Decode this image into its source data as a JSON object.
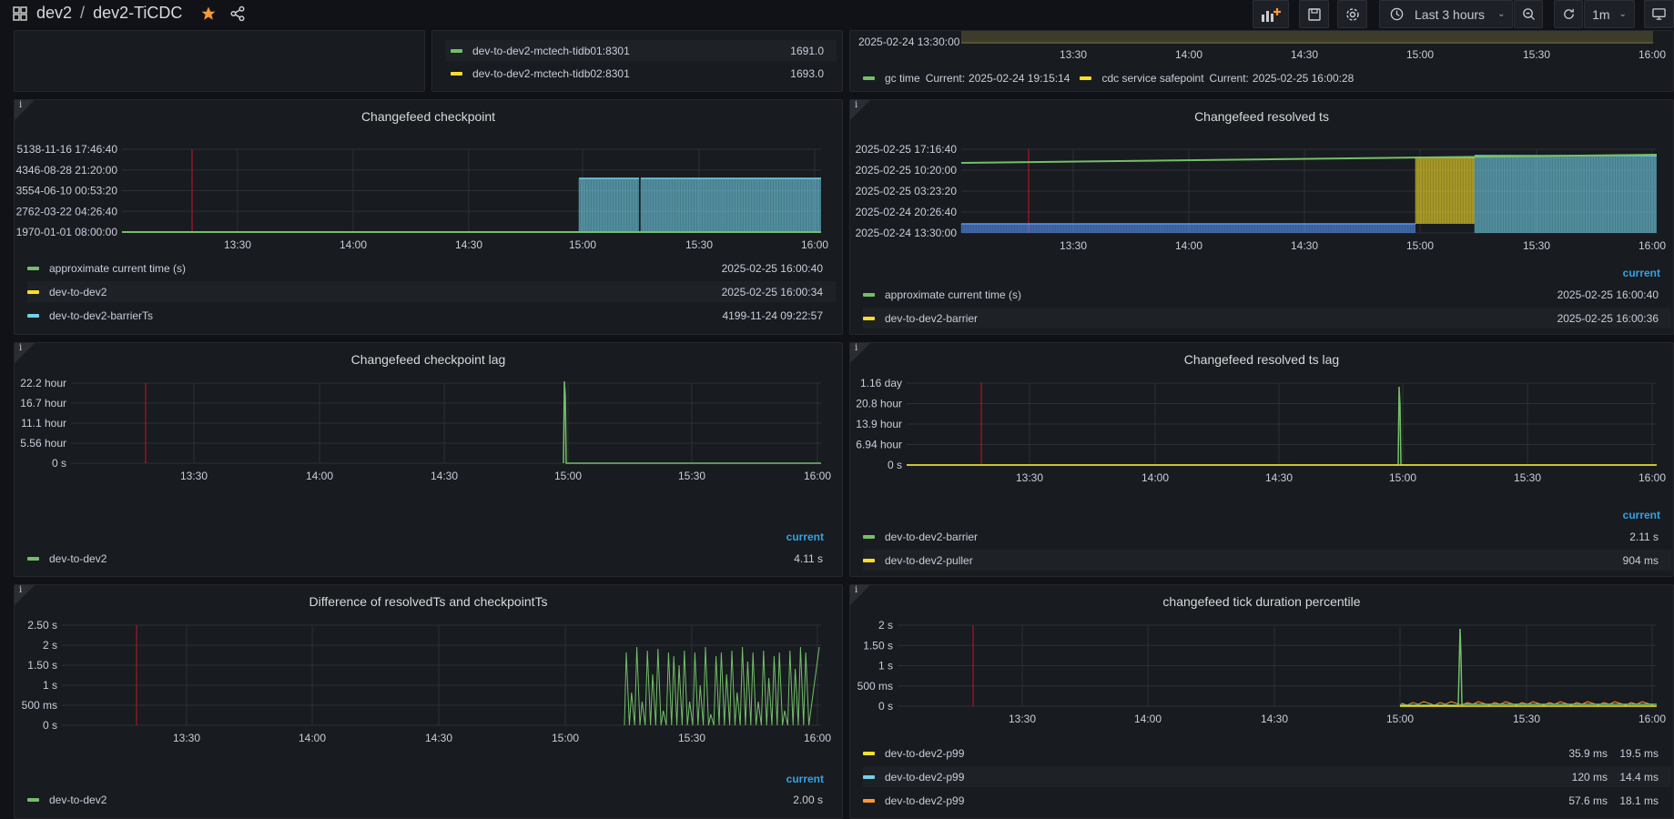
{
  "breadcrumb": {
    "folder": "dev2",
    "separator": "/",
    "dashboard": "dev2-TiCDC"
  },
  "toolbar": {
    "time_range": "Last 3 hours",
    "refresh_interval": "1m"
  },
  "icons": {
    "grid": "apps-grid-icon",
    "star": "star-icon",
    "share": "share-icon",
    "add_panel": "add-panel-icon",
    "save": "save-icon",
    "settings": "gear-icon",
    "clock": "clock-icon",
    "zoom_out": "zoom-out-icon",
    "refresh": "refresh-icon",
    "tv": "tv-mode-icon"
  },
  "colors": {
    "green": "#73bf69",
    "yellow": "#fade2a",
    "cyan": "#5794f2",
    "lightblue": "#73d0e8",
    "orange": "#ff9830",
    "red_marker": "#c4162a",
    "star": "#ff9830",
    "accent": "#33a2e5"
  },
  "x_ticks": [
    "13:30",
    "14:00",
    "14:30",
    "15:00",
    "15:30",
    "16:00"
  ],
  "top_mid": {
    "items": [
      {
        "name": "dev-to-dev2-mctech-tidb01:8301",
        "value": "1691.0",
        "color": "#73bf69"
      },
      {
        "name": "dev-to-dev2-mctech-tidb02:8301",
        "value": "1693.0",
        "color": "#fade2a"
      }
    ]
  },
  "top_right": {
    "ytick": "2025-02-24 13:30:00",
    "legend": [
      {
        "name": "gc time",
        "current_label": "Current:",
        "value": "2025-02-24 19:15:14",
        "color": "#73bf69"
      },
      {
        "name": "cdc service safepoint",
        "current_label": "Current:",
        "value": "2025-02-25 16:00:28",
        "color": "#fade2a"
      }
    ]
  },
  "checkpoint": {
    "title": "Changefeed checkpoint",
    "yticks": [
      "5138-11-16 17:46:40",
      "4346-08-28 21:20:00",
      "3554-06-10 00:53:20",
      "2762-03-22 04:26:40",
      "1970-01-01 08:00:00"
    ],
    "legend": [
      {
        "name": "approximate current time (s)",
        "value": "2025-02-25 16:00:40",
        "color": "#73bf69"
      },
      {
        "name": "dev-to-dev2",
        "value": "2025-02-25 16:00:34",
        "color": "#fade2a"
      },
      {
        "name": "dev-to-dev2-barrierTs",
        "value": "4199-11-24 09:22:57",
        "color": "#73d0e8"
      }
    ]
  },
  "resolved": {
    "title": "Changefeed resolved ts",
    "yticks": [
      "2025-02-25 17:16:40",
      "2025-02-25 10:20:00",
      "2025-02-25 03:23:20",
      "2025-02-24 20:26:40",
      "2025-02-24 13:30:00"
    ],
    "current_header": "current",
    "legend": [
      {
        "name": "approximate current time (s)",
        "value": "2025-02-25 16:00:40",
        "color": "#73bf69"
      },
      {
        "name": "dev-to-dev2-barrier",
        "value": "2025-02-25 16:00:36",
        "color": "#fade2a"
      }
    ]
  },
  "cp_lag": {
    "title": "Changefeed checkpoint lag",
    "yticks": [
      "22.2 hour",
      "16.7 hour",
      "11.1 hour",
      "5.56 hour",
      "0 s"
    ],
    "current_header": "current",
    "legend": [
      {
        "name": "dev-to-dev2",
        "value": "4.11 s",
        "color": "#73bf69"
      }
    ]
  },
  "rs_lag": {
    "title": "Changefeed resolved ts lag",
    "yticks": [
      "1.16 day",
      "20.8 hour",
      "13.9 hour",
      "6.94 hour",
      "0 s"
    ],
    "current_header": "current",
    "legend": [
      {
        "name": "dev-to-dev2-barrier",
        "value": "2.11 s",
        "color": "#73bf69"
      },
      {
        "name": "dev-to-dev2-puller",
        "value": "904 ms",
        "color": "#fade2a"
      }
    ]
  },
  "diff": {
    "title": "Difference of resolvedTs and checkpointTs",
    "yticks": [
      "2.50 s",
      "2 s",
      "1.50 s",
      "1 s",
      "500 ms",
      "0 s"
    ],
    "current_header": "current",
    "legend": [
      {
        "name": "dev-to-dev2",
        "value": "2.00 s",
        "color": "#73bf69"
      }
    ]
  },
  "tick": {
    "title": "changefeed tick duration percentile",
    "yticks": [
      "2 s",
      "1.50 s",
      "1 s",
      "500 ms",
      "0 s"
    ],
    "legend": [
      {
        "name": "dev-to-dev2-p99",
        "v1": "35.9 ms",
        "v2": "19.5 ms",
        "color": "#fade2a"
      },
      {
        "name": "dev-to-dev2-p99",
        "v1": "120 ms",
        "v2": "14.4 ms",
        "color": "#73d0e8"
      },
      {
        "name": "dev-to-dev2-p99",
        "v1": "57.6 ms",
        "v2": "18.1 ms",
        "color": "#ff9830"
      }
    ]
  }
}
